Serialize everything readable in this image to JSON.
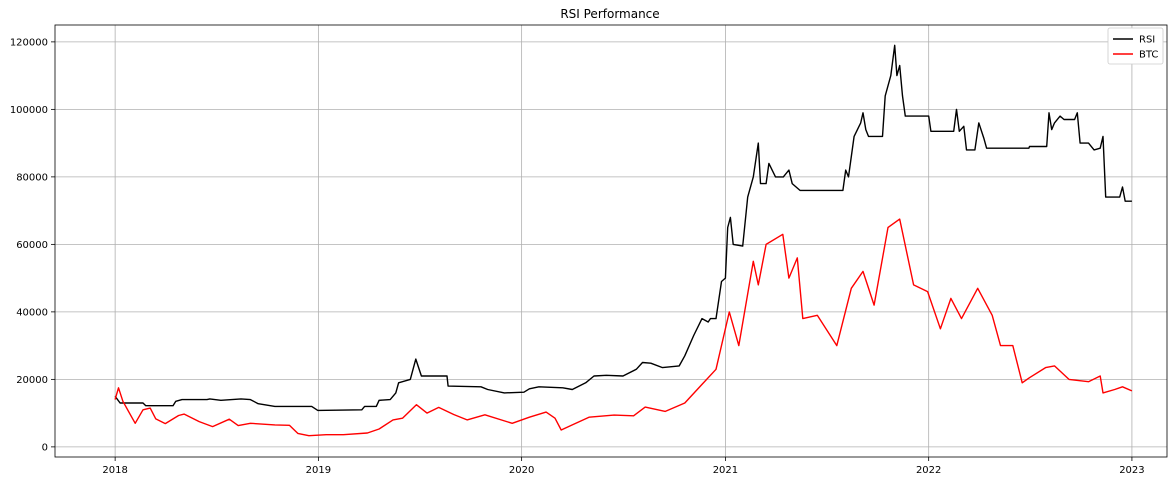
{
  "chart_data": {
    "type": "line",
    "title": "RSI Performance",
    "xlabel": "",
    "ylabel": "",
    "x_range": [
      "2017-09-15",
      "2023-03-05"
    ],
    "x_ticks": [
      "2018",
      "2019",
      "2020",
      "2021",
      "2022",
      "2023"
    ],
    "y_range": [
      -3000,
      125000
    ],
    "y_ticks": [
      0,
      20000,
      40000,
      60000,
      80000,
      100000,
      120000
    ],
    "y_tick_labels": [
      "0",
      "20000",
      "40000",
      "60000",
      "80000",
      "100000",
      "120000"
    ],
    "grid": true,
    "legend_position": "top-right",
    "series": [
      {
        "name": "RSI",
        "color": "#000000",
        "points": [
          [
            "2018-01-01",
            15000
          ],
          [
            "2018-01-10",
            13000
          ],
          [
            "2018-02-20",
            13000
          ],
          [
            "2018-02-25",
            12200
          ],
          [
            "2018-04-15",
            12200
          ],
          [
            "2018-04-20",
            13500
          ],
          [
            "2018-05-01",
            14000
          ],
          [
            "2018-06-15",
            14000
          ],
          [
            "2018-06-20",
            14200
          ],
          [
            "2018-07-10",
            13800
          ],
          [
            "2018-08-15",
            14200
          ],
          [
            "2018-09-01",
            14000
          ],
          [
            "2018-09-15",
            12800
          ],
          [
            "2018-10-15",
            12000
          ],
          [
            "2018-12-20",
            12000
          ],
          [
            "2018-12-31",
            10800
          ],
          [
            "2019-03-20",
            11000
          ],
          [
            "2019-03-25",
            12000
          ],
          [
            "2019-04-15",
            12000
          ],
          [
            "2019-04-20",
            13800
          ],
          [
            "2019-05-10",
            14000
          ],
          [
            "2019-05-20",
            16000
          ],
          [
            "2019-05-25",
            19000
          ],
          [
            "2019-06-15",
            20000
          ],
          [
            "2019-06-25",
            26000
          ],
          [
            "2019-07-05",
            21000
          ],
          [
            "2019-08-20",
            21000
          ],
          [
            "2019-08-22",
            18000
          ],
          [
            "2019-10-20",
            17800
          ],
          [
            "2019-11-01",
            17000
          ],
          [
            "2019-12-01",
            16000
          ],
          [
            "2020-01-05",
            16200
          ],
          [
            "2020-01-15",
            17200
          ],
          [
            "2020-02-01",
            17800
          ],
          [
            "2020-03-15",
            17500
          ],
          [
            "2020-04-01",
            17000
          ],
          [
            "2020-04-25",
            19000
          ],
          [
            "2020-05-10",
            21000
          ],
          [
            "2020-06-01",
            21200
          ],
          [
            "2020-07-01",
            21000
          ],
          [
            "2020-07-25",
            23000
          ],
          [
            "2020-08-05",
            25000
          ],
          [
            "2020-08-20",
            24800
          ],
          [
            "2020-09-10",
            23500
          ],
          [
            "2020-10-10",
            24000
          ],
          [
            "2020-10-20",
            27000
          ],
          [
            "2020-11-05",
            33000
          ],
          [
            "2020-11-20",
            38000
          ],
          [
            "2020-12-01",
            37000
          ],
          [
            "2020-12-05",
            38000
          ],
          [
            "2020-12-15",
            38000
          ],
          [
            "2020-12-25",
            49000
          ],
          [
            "2021-01-01",
            50000
          ],
          [
            "2021-01-05",
            65000
          ],
          [
            "2021-01-10",
            68000
          ],
          [
            "2021-01-15",
            60000
          ],
          [
            "2021-02-01",
            59500
          ],
          [
            "2021-02-10",
            74000
          ],
          [
            "2021-02-20",
            80000
          ],
          [
            "2021-03-01",
            90000
          ],
          [
            "2021-03-05",
            78000
          ],
          [
            "2021-03-15",
            78000
          ],
          [
            "2021-03-20",
            84000
          ],
          [
            "2021-04-01",
            80000
          ],
          [
            "2021-04-15",
            80000
          ],
          [
            "2021-04-25",
            82000
          ],
          [
            "2021-05-01",
            78000
          ],
          [
            "2021-05-15",
            76000
          ],
          [
            "2021-07-31",
            76000
          ],
          [
            "2021-08-05",
            82000
          ],
          [
            "2021-08-10",
            80000
          ],
          [
            "2021-08-20",
            92000
          ],
          [
            "2021-09-01",
            96000
          ],
          [
            "2021-09-05",
            99000
          ],
          [
            "2021-09-10",
            94000
          ],
          [
            "2021-09-15",
            92000
          ],
          [
            "2021-10-10",
            92000
          ],
          [
            "2021-10-15",
            104000
          ],
          [
            "2021-10-25",
            110000
          ],
          [
            "2021-11-01",
            119000
          ],
          [
            "2021-11-05",
            110000
          ],
          [
            "2021-11-10",
            113000
          ],
          [
            "2021-11-15",
            104000
          ],
          [
            "2021-11-20",
            98000
          ],
          [
            "2022-01-01",
            98000
          ],
          [
            "2022-01-05",
            93500
          ],
          [
            "2022-02-15",
            93500
          ],
          [
            "2022-02-20",
            100000
          ],
          [
            "2022-02-25",
            93500
          ],
          [
            "2022-03-05",
            95000
          ],
          [
            "2022-03-10",
            88000
          ],
          [
            "2022-03-25",
            88000
          ],
          [
            "2022-04-01",
            96000
          ],
          [
            "2022-04-10",
            91500
          ],
          [
            "2022-04-15",
            88500
          ],
          [
            "2022-06-30",
            88500
          ],
          [
            "2022-07-01",
            89000
          ],
          [
            "2022-08-01",
            89000
          ],
          [
            "2022-08-05",
            99000
          ],
          [
            "2022-08-10",
            94000
          ],
          [
            "2022-08-15",
            96000
          ],
          [
            "2022-08-25",
            98000
          ],
          [
            "2022-09-01",
            97000
          ],
          [
            "2022-09-20",
            97000
          ],
          [
            "2022-09-25",
            99000
          ],
          [
            "2022-09-30",
            90000
          ],
          [
            "2022-10-15",
            90000
          ],
          [
            "2022-10-25",
            88000
          ],
          [
            "2022-11-05",
            88500
          ],
          [
            "2022-11-10",
            92000
          ],
          [
            "2022-11-15",
            74000
          ],
          [
            "2022-12-10",
            74000
          ],
          [
            "2022-12-15",
            77000
          ],
          [
            "2022-12-20",
            72800
          ],
          [
            "2023-01-01",
            72800
          ]
        ]
      },
      {
        "name": "BTC",
        "color": "#ff0000",
        "points": [
          [
            "2018-01-01",
            14000
          ],
          [
            "2018-01-07",
            17500
          ],
          [
            "2018-01-15",
            13500
          ],
          [
            "2018-02-06",
            7000
          ],
          [
            "2018-02-20",
            11000
          ],
          [
            "2018-03-05",
            11500
          ],
          [
            "2018-03-15",
            8300
          ],
          [
            "2018-04-01",
            6900
          ],
          [
            "2018-04-25",
            9300
          ],
          [
            "2018-05-05",
            9700
          ],
          [
            "2018-06-01",
            7500
          ],
          [
            "2018-06-25",
            6000
          ],
          [
            "2018-07-25",
            8200
          ],
          [
            "2018-08-10",
            6300
          ],
          [
            "2018-09-01",
            7000
          ],
          [
            "2018-10-15",
            6500
          ],
          [
            "2018-11-10",
            6400
          ],
          [
            "2018-11-25",
            4000
          ],
          [
            "2018-12-15",
            3300
          ],
          [
            "2019-01-15",
            3600
          ],
          [
            "2019-02-15",
            3600
          ],
          [
            "2019-03-30",
            4100
          ],
          [
            "2019-04-20",
            5300
          ],
          [
            "2019-05-15",
            8000
          ],
          [
            "2019-06-01",
            8500
          ],
          [
            "2019-06-26",
            12500
          ],
          [
            "2019-07-15",
            10000
          ],
          [
            "2019-08-05",
            11700
          ],
          [
            "2019-09-01",
            9600
          ],
          [
            "2019-09-25",
            8000
          ],
          [
            "2019-10-27",
            9500
          ],
          [
            "2019-12-15",
            7000
          ],
          [
            "2020-01-15",
            8800
          ],
          [
            "2020-02-14",
            10300
          ],
          [
            "2020-03-01",
            8500
          ],
          [
            "2020-03-12",
            5000
          ],
          [
            "2020-04-01",
            6500
          ],
          [
            "2020-05-01",
            8800
          ],
          [
            "2020-06-15",
            9400
          ],
          [
            "2020-07-20",
            9200
          ],
          [
            "2020-08-10",
            11800
          ],
          [
            "2020-09-15",
            10500
          ],
          [
            "2020-10-20",
            13000
          ],
          [
            "2020-11-20",
            18500
          ],
          [
            "2020-12-15",
            23000
          ],
          [
            "2021-01-08",
            40000
          ],
          [
            "2021-01-25",
            30000
          ],
          [
            "2021-02-20",
            55000
          ],
          [
            "2021-03-01",
            48000
          ],
          [
            "2021-03-15",
            60000
          ],
          [
            "2021-04-14",
            63000
          ],
          [
            "2021-04-25",
            50000
          ],
          [
            "2021-05-10",
            56000
          ],
          [
            "2021-05-20",
            38000
          ],
          [
            "2021-06-15",
            39000
          ],
          [
            "2021-07-20",
            30000
          ],
          [
            "2021-08-15",
            47000
          ],
          [
            "2021-09-05",
            52000
          ],
          [
            "2021-09-25",
            42000
          ],
          [
            "2021-10-20",
            65000
          ],
          [
            "2021-11-10",
            67500
          ],
          [
            "2021-12-05",
            48000
          ],
          [
            "2021-12-30",
            46000
          ],
          [
            "2022-01-22",
            35000
          ],
          [
            "2022-02-10",
            44000
          ],
          [
            "2022-03-01",
            38000
          ],
          [
            "2022-03-30",
            47000
          ],
          [
            "2022-04-25",
            39000
          ],
          [
            "2022-05-10",
            30000
          ],
          [
            "2022-06-01",
            30000
          ],
          [
            "2022-06-18",
            19000
          ],
          [
            "2022-07-01",
            20500
          ],
          [
            "2022-07-30",
            23500
          ],
          [
            "2022-08-15",
            24000
          ],
          [
            "2022-09-10",
            20000
          ],
          [
            "2022-10-15",
            19300
          ],
          [
            "2022-11-05",
            21000
          ],
          [
            "2022-11-10",
            16000
          ],
          [
            "2022-12-01",
            17000
          ],
          [
            "2022-12-15",
            17800
          ],
          [
            "2023-01-01",
            16600
          ]
        ]
      }
    ]
  }
}
